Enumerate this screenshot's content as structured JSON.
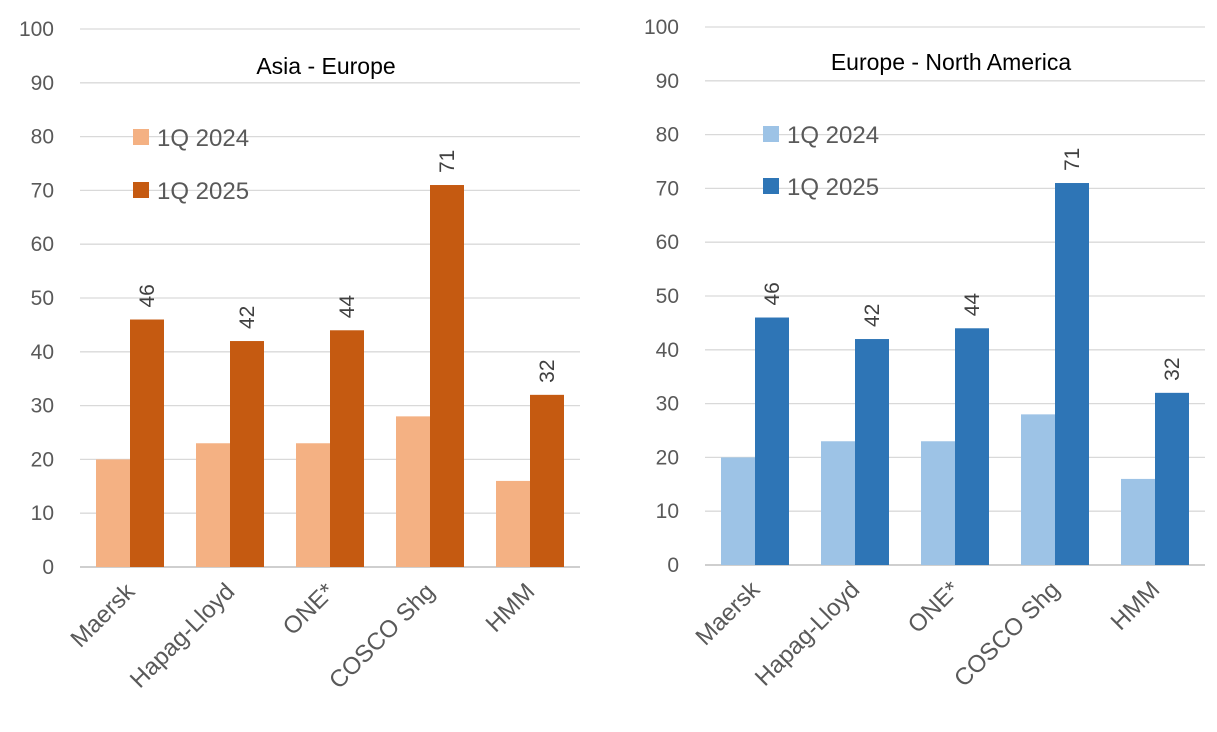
{
  "chart_data": [
    {
      "type": "bar",
      "title": "Asia - Europe",
      "categories": [
        "Maersk",
        "Hapag-Lloyd",
        "ONE*",
        "COSCO Shg",
        "HMM"
      ],
      "series": [
        {
          "name": "1Q 2024",
          "values": [
            20,
            23,
            23,
            28,
            16
          ],
          "color": "#f4b183"
        },
        {
          "name": "1Q 2025",
          "values": [
            46,
            42,
            44,
            71,
            32
          ],
          "color": "#c55a11",
          "labels": [
            "46",
            "42",
            "44",
            "71",
            "32"
          ]
        }
      ],
      "ylim": [
        0,
        100
      ],
      "yticks": [
        "0",
        "10",
        "20",
        "30",
        "40",
        "50",
        "60",
        "70",
        "80",
        "90",
        "100"
      ],
      "grid": true,
      "legend": "top-left"
    },
    {
      "type": "bar",
      "title": "Europe - North America",
      "categories": [
        "Maersk",
        "Hapag-Lloyd",
        "ONE*",
        "COSCO Shg",
        "HMM"
      ],
      "series": [
        {
          "name": "1Q 2024",
          "values": [
            20,
            23,
            23,
            28,
            16
          ],
          "color": "#9dc3e6"
        },
        {
          "name": "1Q 2025",
          "values": [
            46,
            42,
            44,
            71,
            32
          ],
          "color": "#2e75b6",
          "labels": [
            "46",
            "42",
            "44",
            "71",
            "32"
          ]
        }
      ],
      "ylim": [
        0,
        100
      ],
      "yticks": [
        "0",
        "10",
        "20",
        "30",
        "40",
        "50",
        "60",
        "70",
        "80",
        "90",
        "100"
      ],
      "grid": true,
      "legend": "top-left"
    }
  ]
}
